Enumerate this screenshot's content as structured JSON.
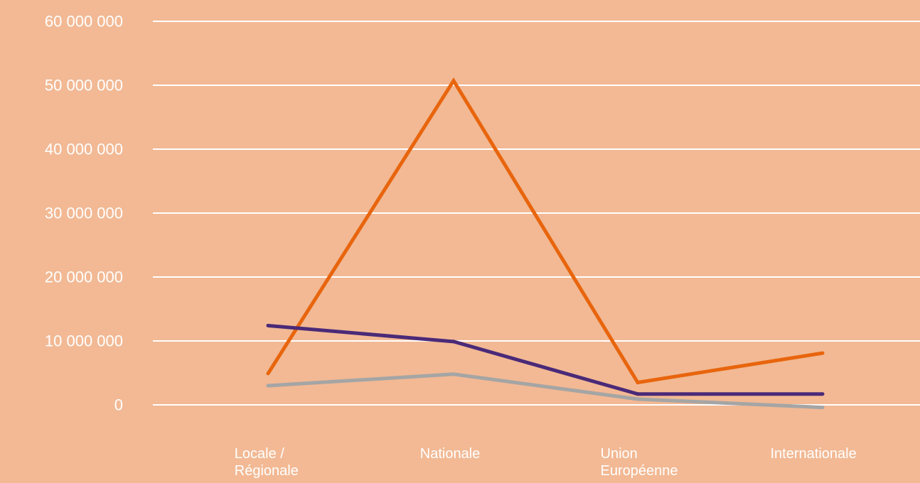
{
  "chart_data": {
    "type": "line",
    "categories": [
      [
        "Locale /",
        "Régionale"
      ],
      [
        "Nationale"
      ],
      [
        "Union",
        "Européenne"
      ],
      [
        "Internationale"
      ]
    ],
    "y_ticks": [
      "0",
      "10 000 000",
      "20 000 000",
      "30 000 000",
      "40 000 000",
      "50 000 000",
      "60 000 000"
    ],
    "ylim": [
      0,
      60000000
    ],
    "grid": true,
    "legend": "none",
    "background": "#f2b994",
    "series": [
      {
        "color": "#e8650d",
        "values": [
          4900000,
          50700000,
          3500000,
          8100000
        ]
      },
      {
        "color": "#4a2a78",
        "values": [
          12400000,
          9900000,
          1700000,
          1700000
        ]
      },
      {
        "color": "#a5a5a5",
        "values": [
          3000000,
          4800000,
          900000,
          -400000
        ]
      }
    ]
  }
}
